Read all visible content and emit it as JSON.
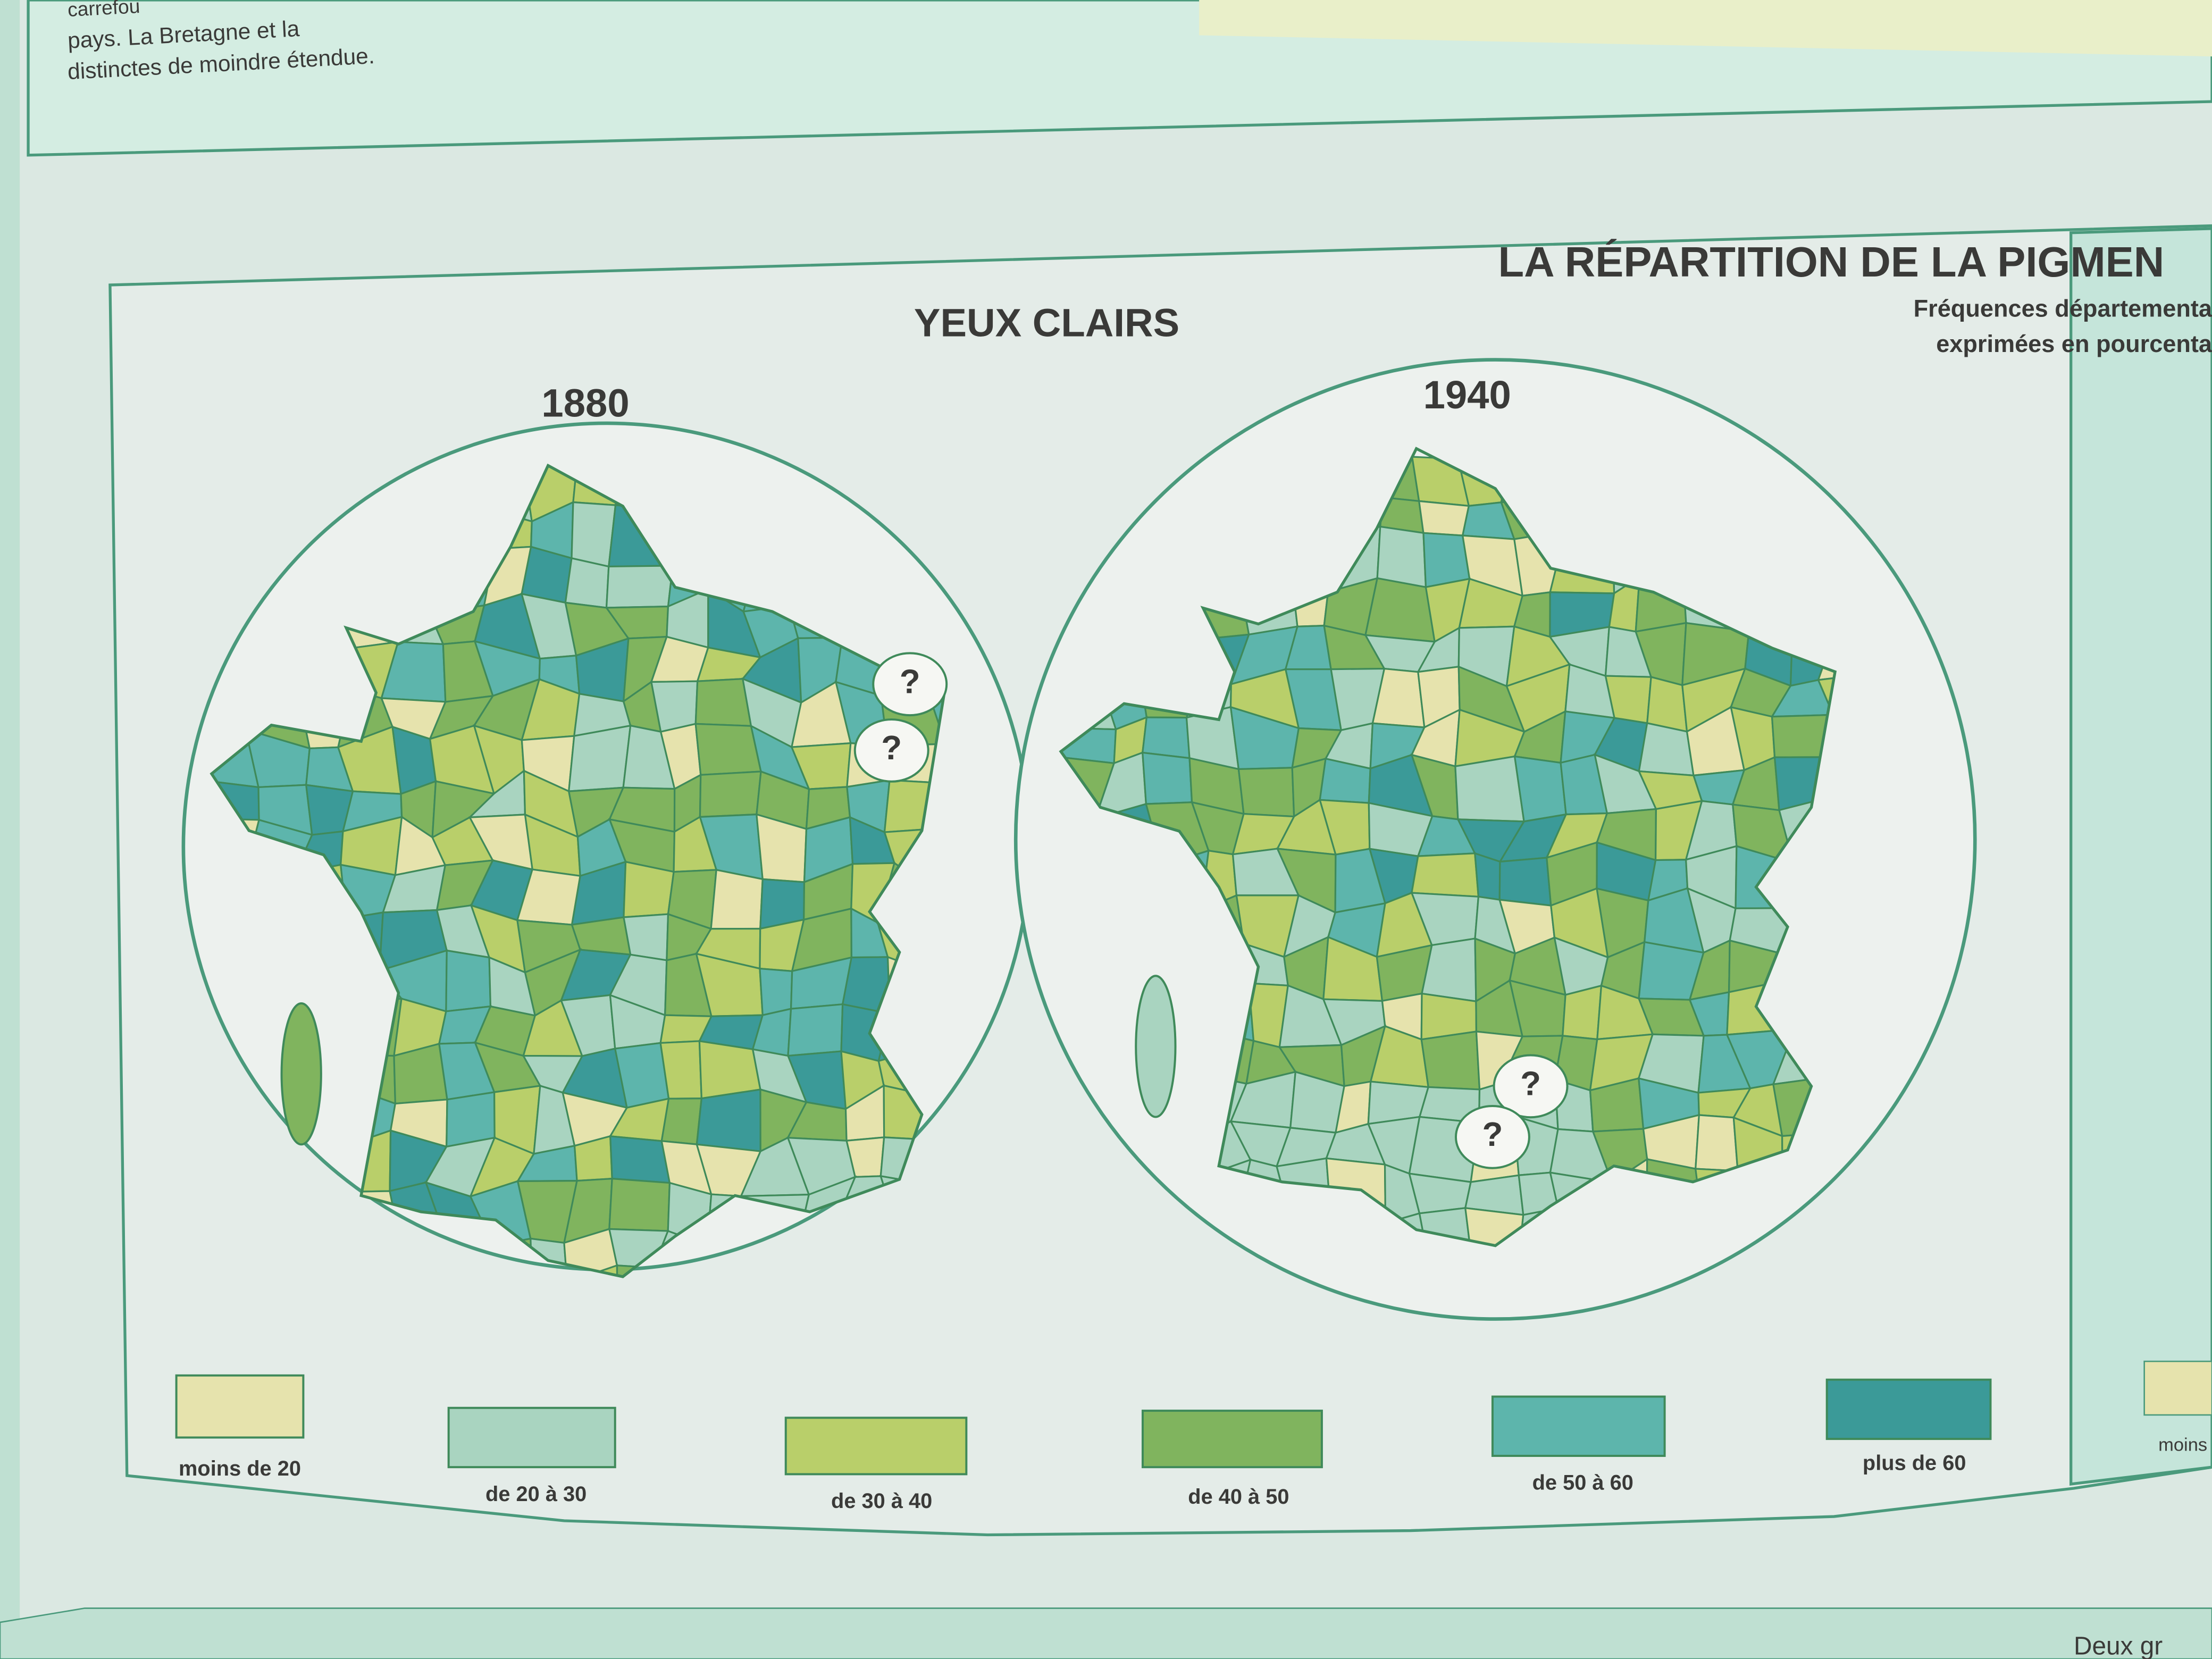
{
  "intro_text": [
    "carrefou",
    "pays. La Bretagne et la",
    "distinctes de moindre étendue."
  ],
  "header": {
    "title": "LA RÉPARTITION DE LA PIGMEN",
    "subtitle": [
      "Fréquences départementa",
      "exprimées en pourcenta"
    ]
  },
  "section_title": "YEUX CLAIRS",
  "maps": [
    {
      "year": "1880",
      "unknown_marks": [
        "?",
        "?"
      ]
    },
    {
      "year": "1940",
      "unknown_marks": [
        "?",
        "?"
      ]
    }
  ],
  "legend": [
    {
      "label": "moins de 20",
      "color": "#e6e3ad"
    },
    {
      "label": "de 20 à 30",
      "color": "#a9d4c0"
    },
    {
      "label": "de 30 à 40",
      "color": "#b9cf6a"
    },
    {
      "label": "de 40 à 50",
      "color": "#80b45e"
    },
    {
      "label": "de 50 à 60",
      "color": "#5db5ac"
    },
    {
      "label": "plus de 60",
      "color": "#3b9a98"
    }
  ],
  "next_legend_label": "moins",
  "footer_text": "Deux gr"
}
